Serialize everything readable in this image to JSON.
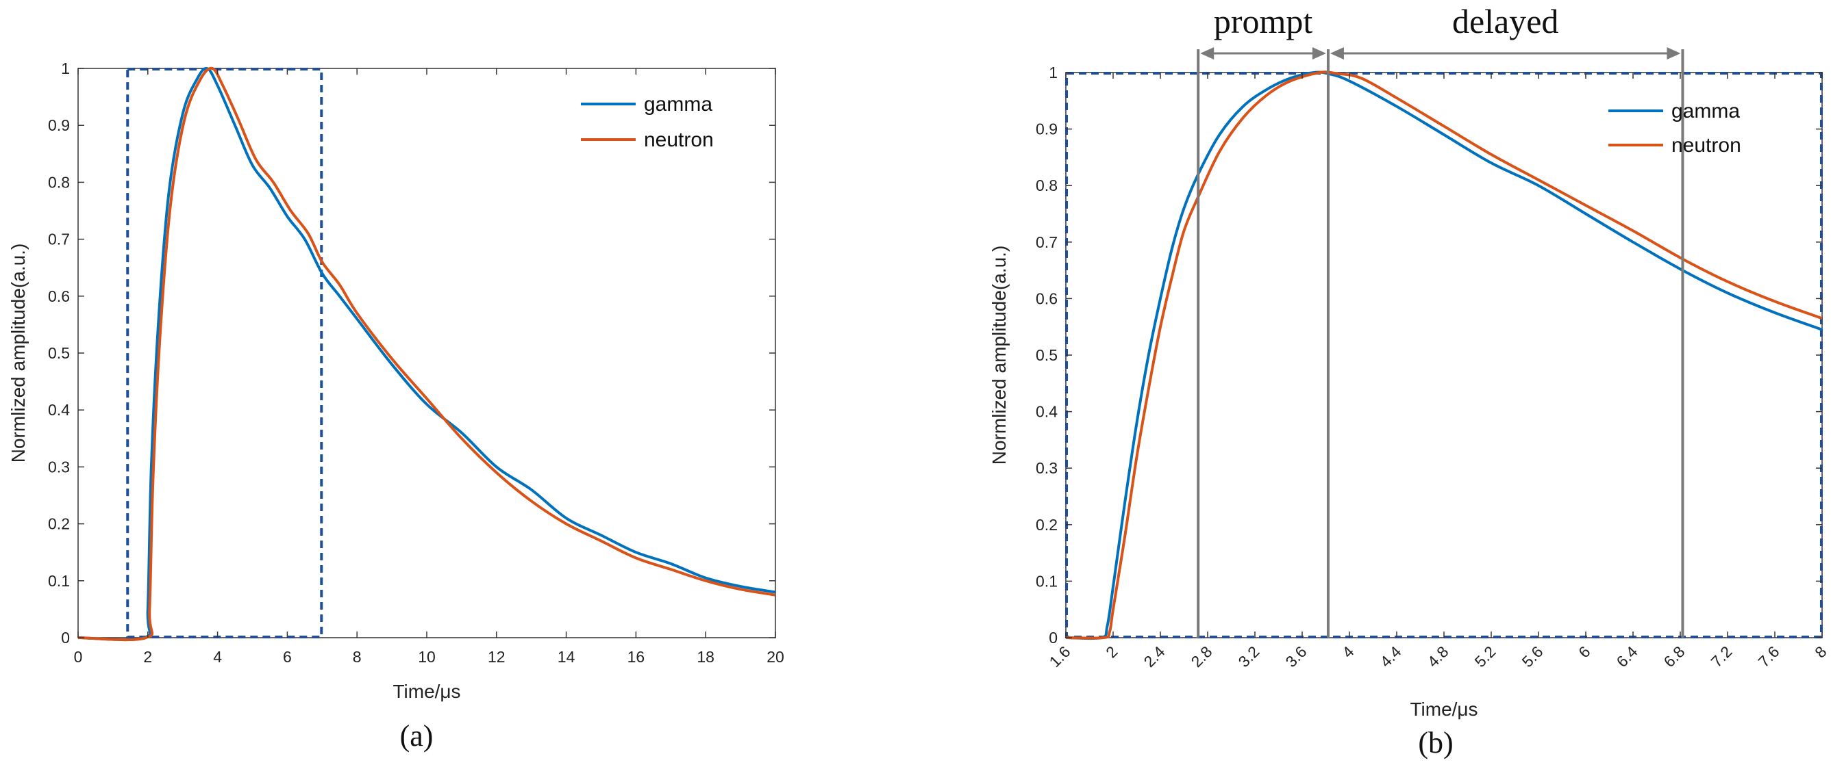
{
  "chart_data": [
    {
      "type": "line",
      "panel_label": "(a)",
      "xlabel": "Time/μs",
      "ylabel": "Normlized amplitude(a.u.)",
      "xlim": [
        0,
        20
      ],
      "ylim": [
        0,
        1
      ],
      "xticks": [
        0,
        2,
        4,
        6,
        8,
        10,
        12,
        14,
        16,
        18,
        20
      ],
      "yticks": [
        0,
        0.1,
        0.2,
        0.3,
        0.4,
        0.5,
        0.6,
        0.7,
        0.8,
        0.9,
        1
      ],
      "ytick_labels": [
        "0",
        "0.1",
        "0.2",
        "0.3",
        "0.4",
        "0.5",
        "0.6",
        "0.7",
        "0.8",
        "0.9",
        "1"
      ],
      "legend": "top-right",
      "grid": false,
      "highlight_box": {
        "x": [
          1.4,
          7.0
        ],
        "y": [
          0,
          1
        ]
      },
      "series": [
        {
          "name": "gamma",
          "color": "#0072BD",
          "points": [
            [
              0,
              0
            ],
            [
              1.9,
              0
            ],
            [
              2.0,
              0.05
            ],
            [
              2.1,
              0.3
            ],
            [
              2.3,
              0.55
            ],
            [
              2.6,
              0.78
            ],
            [
              3.0,
              0.92
            ],
            [
              3.4,
              0.98
            ],
            [
              3.7,
              1.0
            ],
            [
              4.0,
              0.97
            ],
            [
              4.5,
              0.9
            ],
            [
              5.0,
              0.83
            ],
            [
              5.5,
              0.79
            ],
            [
              6.0,
              0.74
            ],
            [
              6.5,
              0.7
            ],
            [
              7.0,
              0.64
            ],
            [
              7.5,
              0.6
            ],
            [
              8.0,
              0.56
            ],
            [
              9.0,
              0.48
            ],
            [
              10.0,
              0.41
            ],
            [
              11.0,
              0.36
            ],
            [
              12.0,
              0.3
            ],
            [
              13.0,
              0.26
            ],
            [
              14.0,
              0.21
            ],
            [
              15.0,
              0.18
            ],
            [
              16.0,
              0.15
            ],
            [
              17.0,
              0.13
            ],
            [
              18.0,
              0.105
            ],
            [
              19.0,
              0.09
            ],
            [
              20.0,
              0.08
            ]
          ]
        },
        {
          "name": "neutron",
          "color": "#D95319",
          "points": [
            [
              0,
              0
            ],
            [
              1.95,
              0
            ],
            [
              2.05,
              0.05
            ],
            [
              2.15,
              0.28
            ],
            [
              2.35,
              0.53
            ],
            [
              2.65,
              0.76
            ],
            [
              3.05,
              0.91
            ],
            [
              3.5,
              0.98
            ],
            [
              3.85,
              1.0
            ],
            [
              4.15,
              0.97
            ],
            [
              4.6,
              0.91
            ],
            [
              5.1,
              0.84
            ],
            [
              5.6,
              0.8
            ],
            [
              6.1,
              0.75
            ],
            [
              6.6,
              0.71
            ],
            [
              7.0,
              0.66
            ],
            [
              7.5,
              0.62
            ],
            [
              8.0,
              0.57
            ],
            [
              9.0,
              0.49
            ],
            [
              10.0,
              0.42
            ],
            [
              11.0,
              0.35
            ],
            [
              12.0,
              0.29
            ],
            [
              13.0,
              0.24
            ],
            [
              14.0,
              0.2
            ],
            [
              15.0,
              0.17
            ],
            [
              16.0,
              0.14
            ],
            [
              17.0,
              0.12
            ],
            [
              18.0,
              0.1
            ],
            [
              19.0,
              0.085
            ],
            [
              20.0,
              0.075
            ]
          ]
        }
      ]
    },
    {
      "type": "line",
      "panel_label": "(b)",
      "xlabel": "Time/μs",
      "ylabel": "Normlized amplitude(a.u.)",
      "xlim": [
        1.6,
        8
      ],
      "ylim": [
        0,
        1
      ],
      "xticks": [
        1.6,
        2,
        2.4,
        2.8,
        3.2,
        3.6,
        4,
        4.4,
        4.8,
        5.2,
        5.6,
        6,
        6.4,
        6.8,
        7.2,
        7.6,
        8
      ],
      "xtick_labels": [
        "1.6",
        "2",
        "2.4",
        "2.8",
        "3.2",
        "3.6",
        "4",
        "4.4",
        "4.8",
        "5.2",
        "5.6",
        "6",
        "6.4",
        "6.8",
        "7.2",
        "7.6",
        "8"
      ],
      "yticks": [
        0,
        0.1,
        0.2,
        0.3,
        0.4,
        0.5,
        0.6,
        0.7,
        0.8,
        0.9,
        1
      ],
      "ytick_labels": [
        "0",
        "0.1",
        "0.2",
        "0.3",
        "0.4",
        "0.5",
        "0.6",
        "0.7",
        "0.8",
        "0.9",
        "1"
      ],
      "legend": "top-right",
      "grid": false,
      "highlight_box": {
        "x": [
          1.6,
          8.0
        ],
        "y": [
          0,
          1
        ]
      },
      "markers": [
        2.72,
        3.82,
        6.82
      ],
      "regions": [
        {
          "label": "prompt",
          "from": 2.72,
          "to": 3.82
        },
        {
          "label": "delayed",
          "from": 3.82,
          "to": 6.82
        }
      ],
      "series": [
        {
          "name": "gamma",
          "color": "#0072BD",
          "points": [
            [
              1.6,
              0
            ],
            [
              1.9,
              0
            ],
            [
              1.95,
              0.02
            ],
            [
              2.0,
              0.09
            ],
            [
              2.1,
              0.24
            ],
            [
              2.2,
              0.38
            ],
            [
              2.3,
              0.5
            ],
            [
              2.4,
              0.6
            ],
            [
              2.5,
              0.69
            ],
            [
              2.6,
              0.76
            ],
            [
              2.72,
              0.82
            ],
            [
              2.9,
              0.89
            ],
            [
              3.1,
              0.94
            ],
            [
              3.3,
              0.97
            ],
            [
              3.5,
              0.99
            ],
            [
              3.7,
              1.0
            ],
            [
              3.82,
              0.998
            ],
            [
              4.0,
              0.985
            ],
            [
              4.4,
              0.94
            ],
            [
              4.8,
              0.89
            ],
            [
              5.2,
              0.84
            ],
            [
              5.6,
              0.8
            ],
            [
              6.0,
              0.75
            ],
            [
              6.4,
              0.7
            ],
            [
              6.82,
              0.65
            ],
            [
              7.2,
              0.61
            ],
            [
              7.6,
              0.575
            ],
            [
              8.0,
              0.545
            ]
          ]
        },
        {
          "name": "neutron",
          "color": "#D95319",
          "points": [
            [
              1.6,
              0
            ],
            [
              1.92,
              0
            ],
            [
              1.97,
              0.01
            ],
            [
              2.0,
              0.05
            ],
            [
              2.1,
              0.18
            ],
            [
              2.2,
              0.32
            ],
            [
              2.3,
              0.44
            ],
            [
              2.4,
              0.55
            ],
            [
              2.5,
              0.64
            ],
            [
              2.6,
              0.72
            ],
            [
              2.72,
              0.78
            ],
            [
              2.9,
              0.86
            ],
            [
              3.1,
              0.92
            ],
            [
              3.3,
              0.96
            ],
            [
              3.5,
              0.985
            ],
            [
              3.75,
              1.0
            ],
            [
              3.9,
              0.998
            ],
            [
              4.1,
              0.99
            ],
            [
              4.4,
              0.955
            ],
            [
              4.8,
              0.905
            ],
            [
              5.2,
              0.855
            ],
            [
              5.6,
              0.81
            ],
            [
              6.0,
              0.765
            ],
            [
              6.4,
              0.72
            ],
            [
              6.82,
              0.67
            ],
            [
              7.2,
              0.63
            ],
            [
              7.6,
              0.595
            ],
            [
              8.0,
              0.565
            ]
          ]
        }
      ]
    }
  ]
}
